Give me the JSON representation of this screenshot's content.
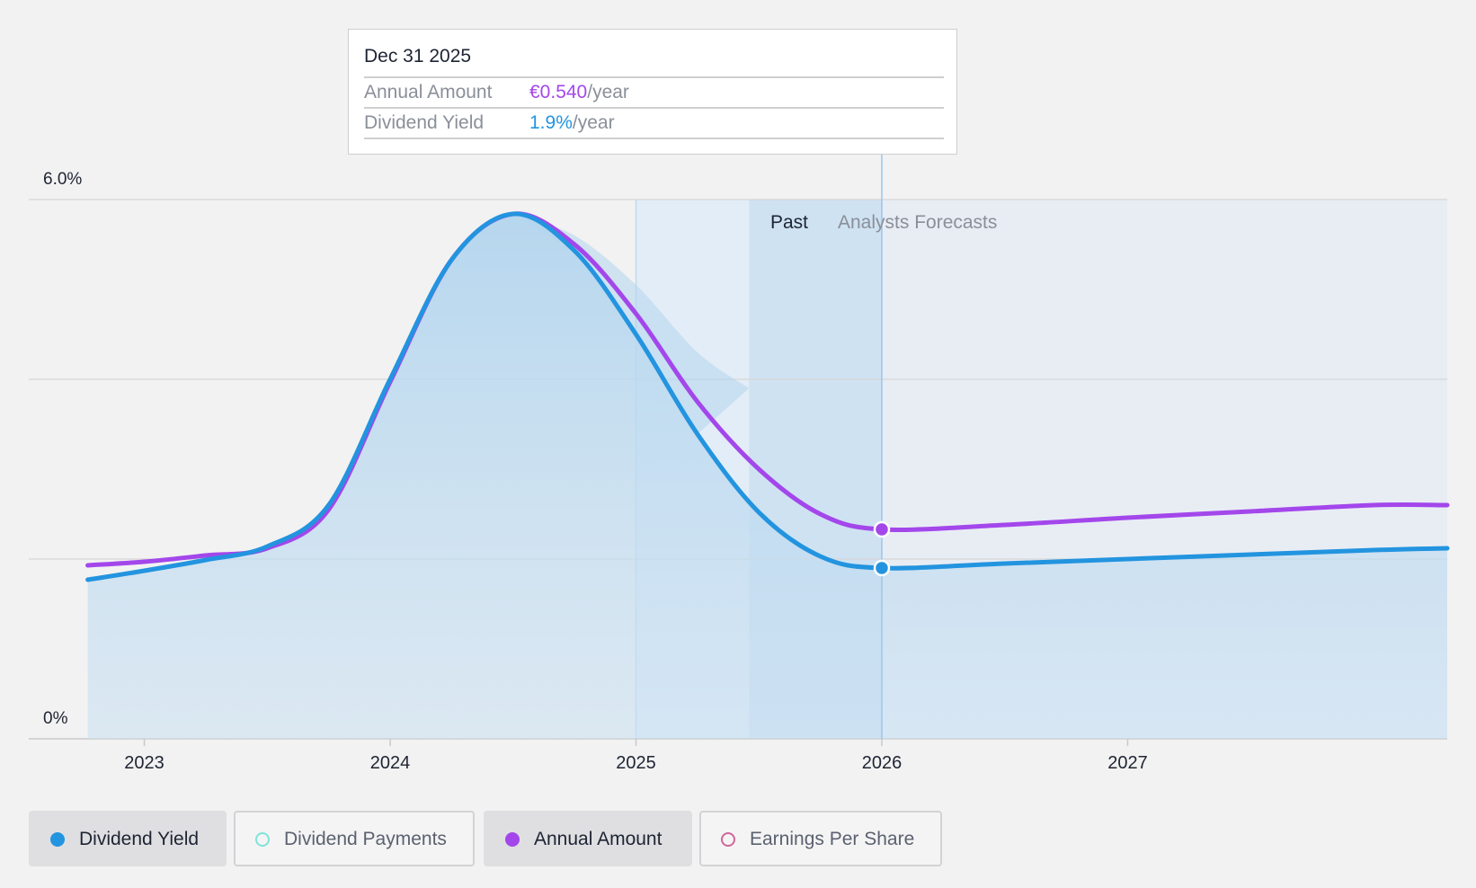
{
  "tooltip": {
    "date": "Dec 31 2025",
    "rows": [
      {
        "name": "Annual Amount",
        "value": "€0.540",
        "unit": "/year",
        "color": "#a347eb"
      },
      {
        "name": "Dividend Yield",
        "value": "1.9%",
        "unit": "/year",
        "color": "#2394df"
      }
    ]
  },
  "legend": [
    {
      "label": "Dividend Yield",
      "color": "#2394df",
      "filled": true,
      "active": true
    },
    {
      "label": "Dividend Payments",
      "color": "#7fe3d9",
      "filled": false,
      "active": false
    },
    {
      "label": "Annual Amount",
      "color": "#a347eb",
      "filled": true,
      "active": true
    },
    {
      "label": "Earnings Per Share",
      "color": "#d0669a",
      "filled": false,
      "active": false
    }
  ],
  "chart_data": {
    "type": "line",
    "title": "",
    "xlabel": "",
    "ylabel": "",
    "x_ticks": [
      "2023",
      "2024",
      "2025",
      "2026",
      "2027"
    ],
    "xlim": [
      2022.53,
      2028.3
    ],
    "y_ticks": [
      "0%",
      "6.0%"
    ],
    "ylim": [
      0,
      6.0
    ],
    "grid": true,
    "region_labels": {
      "past": "Past",
      "forecast": "Analysts Forecasts"
    },
    "past_band_start": 2025.0,
    "forecast_start": 2025.46,
    "cursor_x": 2026.0,
    "series": [
      {
        "name": "Dividend Yield",
        "color": "#2394df",
        "x": [
          2022.77,
          2023.0,
          2023.25,
          2023.5,
          2023.75,
          2024.0,
          2024.25,
          2024.5,
          2024.75,
          2025.0,
          2025.25,
          2025.5,
          2025.75,
          2026.0,
          2026.5,
          2027.0,
          2027.5,
          2028.0,
          2028.3
        ],
        "y": [
          1.77,
          1.87,
          1.99,
          2.14,
          2.6,
          4.0,
          5.33,
          5.84,
          5.43,
          4.5,
          3.39,
          2.52,
          2.03,
          1.9,
          1.95,
          2.0,
          2.05,
          2.1,
          2.12
        ]
      },
      {
        "name": "Annual Amount",
        "color": "#a347eb",
        "x": [
          2022.77,
          2023.0,
          2023.25,
          2023.5,
          2023.75,
          2024.0,
          2024.25,
          2024.5,
          2024.75,
          2025.0,
          2025.25,
          2025.5,
          2025.75,
          2026.0,
          2026.5,
          2027.0,
          2027.5,
          2028.0,
          2028.3
        ],
        "y": [
          1.93,
          1.97,
          2.04,
          2.12,
          2.55,
          3.97,
          5.33,
          5.84,
          5.5,
          4.73,
          3.75,
          3.0,
          2.5,
          2.33,
          2.38,
          2.46,
          2.53,
          2.6,
          2.6
        ]
      }
    ],
    "past_band_envelope": {
      "x": [
        2024.5,
        2024.75,
        2025.0,
        2025.25,
        2025.46
      ],
      "y": [
        5.84,
        5.6,
        5.05,
        4.3,
        3.9
      ]
    }
  }
}
